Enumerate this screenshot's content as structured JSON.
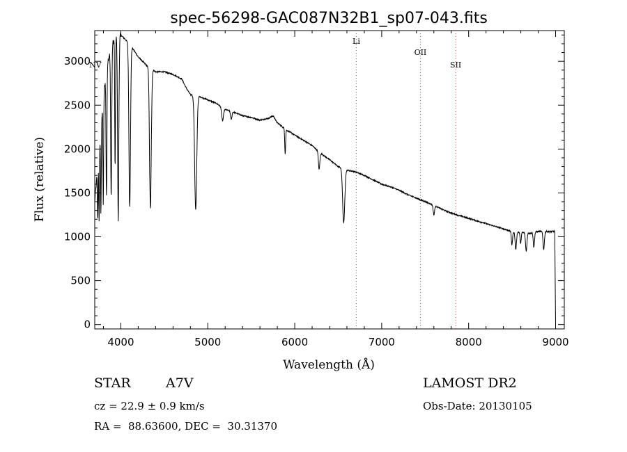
{
  "chart_data": {
    "type": "line",
    "title": "spec-56298-GAC087N32B1_sp07-043.fits",
    "xlabel": "Wavelength (Å)",
    "ylabel": "Flux (relative)",
    "xlim": [
      3700,
      9100
    ],
    "ylim": [
      -50,
      3350
    ],
    "xticks": [
      4000,
      5000,
      6000,
      7000,
      8000,
      9000
    ],
    "yticks": [
      0,
      500,
      1000,
      1500,
      2000,
      2500,
      3000
    ],
    "grid": false,
    "series": [
      {
        "name": "flux",
        "continuum": [
          [
            3700,
            1400
          ],
          [
            3750,
            2000
          ],
          [
            3800,
            2600
          ],
          [
            3850,
            3000
          ],
          [
            3900,
            3200
          ],
          [
            3950,
            3280
          ],
          [
            4000,
            3300
          ],
          [
            4050,
            3250
          ],
          [
            4100,
            3200
          ],
          [
            4200,
            3050
          ],
          [
            4300,
            2950
          ],
          [
            4400,
            2880
          ],
          [
            4500,
            2880
          ],
          [
            4600,
            2850
          ],
          [
            4700,
            2800
          ],
          [
            4750,
            2700
          ],
          [
            4800,
            2620
          ],
          [
            4900,
            2600
          ],
          [
            5000,
            2560
          ],
          [
            5100,
            2520
          ],
          [
            5200,
            2450
          ],
          [
            5300,
            2420
          ],
          [
            5400,
            2380
          ],
          [
            5500,
            2360
          ],
          [
            5600,
            2330
          ],
          [
            5700,
            2350
          ],
          [
            5750,
            2380
          ],
          [
            5800,
            2300
          ],
          [
            5900,
            2220
          ],
          [
            6000,
            2160
          ],
          [
            6100,
            2100
          ],
          [
            6200,
            2040
          ],
          [
            6300,
            1950
          ],
          [
            6400,
            1880
          ],
          [
            6500,
            1800
          ],
          [
            6600,
            1760
          ],
          [
            6700,
            1740
          ],
          [
            6800,
            1700
          ],
          [
            6900,
            1650
          ],
          [
            7000,
            1600
          ],
          [
            7100,
            1570
          ],
          [
            7200,
            1530
          ],
          [
            7300,
            1480
          ],
          [
            7400,
            1440
          ],
          [
            7500,
            1400
          ],
          [
            7600,
            1360
          ],
          [
            7700,
            1310
          ],
          [
            7800,
            1270
          ],
          [
            7900,
            1240
          ],
          [
            8000,
            1210
          ],
          [
            8100,
            1180
          ],
          [
            8200,
            1150
          ],
          [
            8300,
            1120
          ],
          [
            8400,
            1090
          ],
          [
            8500,
            1060
          ],
          [
            8600,
            1050
          ],
          [
            8700,
            1040
          ],
          [
            8800,
            1060
          ],
          [
            8900,
            1060
          ],
          [
            8990,
            1060
          ],
          [
            9000,
            0
          ]
        ],
        "absorption_lines": [
          {
            "center": 3734,
            "depth": 600,
            "width": 4
          },
          {
            "center": 3750,
            "depth": 800,
            "width": 4
          },
          {
            "center": 3771,
            "depth": 1000,
            "width": 4
          },
          {
            "center": 3798,
            "depth": 1200,
            "width": 4
          },
          {
            "center": 3835,
            "depth": 1400,
            "width": 5
          },
          {
            "center": 3889,
            "depth": 1700,
            "width": 6
          },
          {
            "center": 3934,
            "depth": 1500,
            "width": 4
          },
          {
            "center": 3970,
            "depth": 2100,
            "width": 7
          },
          {
            "center": 4102,
            "depth": 1850,
            "width": 9
          },
          {
            "center": 4340,
            "depth": 1600,
            "width": 10
          },
          {
            "center": 4861,
            "depth": 1300,
            "width": 12
          },
          {
            "center": 5170,
            "depth": 150,
            "width": 10
          },
          {
            "center": 5270,
            "depth": 90,
            "width": 8
          },
          {
            "center": 5890,
            "depth": 280,
            "width": 5
          },
          {
            "center": 6280,
            "depth": 200,
            "width": 8
          },
          {
            "center": 6563,
            "depth": 620,
            "width": 12
          },
          {
            "center": 7600,
            "depth": 110,
            "width": 8
          },
          {
            "center": 8498,
            "depth": 150,
            "width": 7
          },
          {
            "center": 8542,
            "depth": 200,
            "width": 8
          },
          {
            "center": 8598,
            "depth": 130,
            "width": 6
          },
          {
            "center": 8662,
            "depth": 210,
            "width": 8
          },
          {
            "center": 8750,
            "depth": 170,
            "width": 7
          },
          {
            "center": 8863,
            "depth": 200,
            "width": 8
          }
        ]
      }
    ],
    "line_markers": [
      {
        "label": "NV",
        "x": 3700
      },
      {
        "label": "Li",
        "x": 6708
      },
      {
        "label": "OII",
        "x": 7445
      },
      {
        "label": "SII",
        "x": 7851
      }
    ]
  },
  "info": {
    "object_class": "STAR",
    "subclass": "A7V",
    "survey": "LAMOST DR2",
    "redshift": "cz = 22.9 ± 0.9 km/s",
    "obs_date": "Obs-Date: 20130105",
    "coords": "RA =  88.63600, DEC =  30.31370"
  }
}
